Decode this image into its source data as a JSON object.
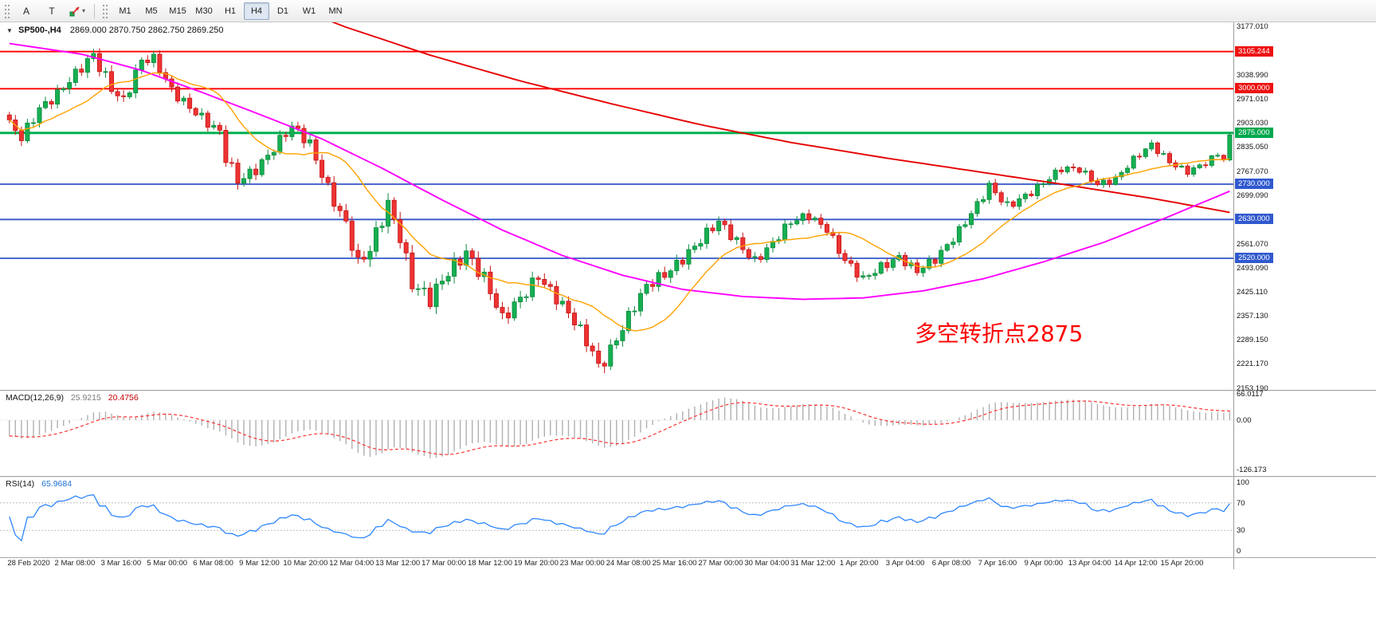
{
  "palette": {
    "up_fill": "#16af52",
    "up_stroke": "#0d8a3e",
    "down_fill": "#ee3333",
    "down_stroke": "#c41414",
    "ma_fast": "#ffa200",
    "ma_mid": "#ff00ff",
    "ma_slow": "#e60000",
    "level_red": "#ff0000",
    "level_blue": "#3256c8",
    "level_green": "#00b050",
    "badge_red": "#ee1111",
    "badge_blue": "#3059cf",
    "badge_green": "#00a84d",
    "macd_hist": "#b0b0b0",
    "macd_signal": "#ff3030",
    "rsi_line": "#2e86ff",
    "grid_dash": "#c9c9c9"
  },
  "toolbar": {
    "tool_buttons": [
      {
        "label": "A"
      },
      {
        "label": "T"
      }
    ],
    "shapes_caret": "▾",
    "timeframes": [
      "M1",
      "M5",
      "M15",
      "M30",
      "H1",
      "H4",
      "D1",
      "W1",
      "MN"
    ],
    "active_timeframe": "H4"
  },
  "chart": {
    "title_tri": "▼",
    "title_symbol": "SP500-,H4",
    "title_ohlc": "2869.000 2870.750 2862.750 2869.250",
    "annotation": {
      "text": "多空转折点2875",
      "color": "#ff0000"
    },
    "price_range": {
      "max": 3188,
      "min": 2150
    },
    "axis_ticks": [
      "3177.010",
      "3038.990",
      "2971.010",
      "2903.030",
      "2835.050",
      "2767.070",
      "2699.090",
      "2561.070",
      "2493.090",
      "2425.110",
      "2357.130",
      "2289.150",
      "2221.170",
      "2153.190"
    ],
    "levels": [
      {
        "price": 3105.244,
        "label": "3105.244",
        "type": "red"
      },
      {
        "price": 3000.0,
        "label": "3000.000",
        "type": "red"
      },
      {
        "price": 2875.0,
        "label": "2875.000",
        "type": "green"
      },
      {
        "price": 2730.0,
        "label": "2730.000",
        "type": "blue"
      },
      {
        "price": 2630.0,
        "label": "2630.000",
        "type": "blue"
      },
      {
        "price": 2520.0,
        "label": "2520.000",
        "type": "blue"
      }
    ],
    "time_labels": [
      "28 Feb 2020",
      "2 Mar 08:00",
      "3 Mar 16:00",
      "5 Mar 00:00",
      "6 Mar 08:00",
      "9 Mar 12:00",
      "10 Mar 20:00",
      "12 Mar 04:00",
      "13 Mar 12:00",
      "17 Mar 00:00",
      "18 Mar 12:00",
      "19 Mar 20:00",
      "23 Mar 00:00",
      "24 Mar 08:00",
      "25 Mar 16:00",
      "27 Mar 00:00",
      "30 Mar 04:00",
      "31 Mar 12:00",
      "1 Apr 20:00",
      "3 Apr 04:00",
      "6 Apr 08:00",
      "7 Apr 16:00",
      "9 Apr 00:00",
      "13 Apr 04:00",
      "14 Apr 12:00",
      "15 Apr 20:00"
    ]
  },
  "macd": {
    "label": "MACD(12,26,9)",
    "value_main": "25.9215",
    "value_signal": "20.4756",
    "axis_ticks": [
      {
        "v": 66.0117,
        "label": "66.0117"
      },
      {
        "v": 0,
        "label": "0.00"
      },
      {
        "v": -126.173,
        "label": "-126.173"
      }
    ],
    "scale": {
      "max": 75,
      "min": -140
    }
  },
  "rsi": {
    "label": "RSI(14)",
    "value": "65.9684",
    "axis_ticks": [
      {
        "v": 100,
        "label": "100"
      },
      {
        "v": 70,
        "label": "70"
      },
      {
        "v": 30,
        "label": "30"
      },
      {
        "v": 0,
        "label": "0"
      }
    ],
    "levels": [
      70,
      30
    ],
    "scale": {
      "max": 108,
      "min": -8
    }
  },
  "chart_data": {
    "type": "candlestick",
    "symbol": "SP500-",
    "timeframe": "H4",
    "current_ohlc": {
      "open": 2869.0,
      "high": 2870.75,
      "low": 2862.75,
      "close": 2869.25
    },
    "bars": 204,
    "time_range": {
      "start": "28 Feb 2020",
      "end": "15 Apr 20:00"
    },
    "price_path": [
      [
        0,
        2895,
        30
      ],
      [
        2,
        2862,
        30
      ],
      [
        5,
        2950,
        28
      ],
      [
        8,
        2985,
        28
      ],
      [
        11,
        3035,
        30
      ],
      [
        14,
        3095,
        32
      ],
      [
        17,
        3010,
        36
      ],
      [
        19,
        2968,
        32
      ],
      [
        22,
        3075,
        30
      ],
      [
        24,
        3080,
        26
      ],
      [
        27,
        3000,
        28
      ],
      [
        30,
        2952,
        26
      ],
      [
        33,
        2900,
        28
      ],
      [
        35,
        2872,
        26
      ],
      [
        36,
        2800,
        32
      ],
      [
        38,
        2742,
        34
      ],
      [
        41,
        2778,
        30
      ],
      [
        44,
        2830,
        30
      ],
      [
        47,
        2888,
        28
      ],
      [
        50,
        2845,
        30
      ],
      [
        53,
        2725,
        34
      ],
      [
        56,
        2615,
        38
      ],
      [
        58,
        2495,
        42
      ],
      [
        60,
        2540,
        42
      ],
      [
        63,
        2680,
        40
      ],
      [
        65,
        2590,
        42
      ],
      [
        67,
        2450,
        45
      ],
      [
        70,
        2395,
        42
      ],
      [
        73,
        2480,
        40
      ],
      [
        76,
        2545,
        38
      ],
      [
        79,
        2465,
        38
      ],
      [
        82,
        2340,
        38
      ],
      [
        85,
        2405,
        36
      ],
      [
        88,
        2478,
        34
      ],
      [
        91,
        2408,
        34
      ],
      [
        94,
        2335,
        32
      ],
      [
        97,
        2255,
        36
      ],
      [
        98,
        2215,
        46
      ],
      [
        100,
        2268,
        32
      ],
      [
        103,
        2355,
        32
      ],
      [
        106,
        2435,
        30
      ],
      [
        109,
        2475,
        32
      ],
      [
        112,
        2525,
        30
      ],
      [
        115,
        2572,
        30
      ],
      [
        118,
        2618,
        28
      ],
      [
        121,
        2568,
        28
      ],
      [
        124,
        2518,
        26
      ],
      [
        127,
        2562,
        26
      ],
      [
        130,
        2618,
        26
      ],
      [
        133,
        2642,
        24
      ],
      [
        136,
        2608,
        24
      ],
      [
        139,
        2512,
        26
      ],
      [
        142,
        2455,
        26
      ],
      [
        145,
        2498,
        24
      ],
      [
        148,
        2528,
        22
      ],
      [
        151,
        2482,
        24
      ],
      [
        154,
        2512,
        22
      ],
      [
        157,
        2578,
        24
      ],
      [
        160,
        2652,
        22
      ],
      [
        163,
        2722,
        24
      ],
      [
        166,
        2662,
        26
      ],
      [
        169,
        2698,
        22
      ],
      [
        172,
        2738,
        20
      ],
      [
        175,
        2772,
        20
      ],
      [
        178,
        2768,
        18
      ],
      [
        181,
        2732,
        20
      ],
      [
        184,
        2748,
        18
      ],
      [
        187,
        2798,
        18
      ],
      [
        190,
        2838,
        18
      ],
      [
        193,
        2795,
        18
      ],
      [
        196,
        2768,
        16
      ],
      [
        199,
        2788,
        16
      ],
      [
        201,
        2812,
        14
      ],
      [
        202,
        2798,
        12
      ],
      [
        203,
        2869.25,
        8
      ]
    ],
    "ma_mid_path": [
      [
        0,
        3128
      ],
      [
        12,
        3098
      ],
      [
        22,
        3052
      ],
      [
        32,
        2990
      ],
      [
        42,
        2925
      ],
      [
        52,
        2858
      ],
      [
        62,
        2775
      ],
      [
        72,
        2685
      ],
      [
        82,
        2600
      ],
      [
        92,
        2528
      ],
      [
        102,
        2472
      ],
      [
        112,
        2432
      ],
      [
        122,
        2412
      ],
      [
        132,
        2404
      ],
      [
        142,
        2408
      ],
      [
        152,
        2428
      ],
      [
        162,
        2462
      ],
      [
        172,
        2510
      ],
      [
        182,
        2565
      ],
      [
        192,
        2632
      ],
      [
        203,
        2710
      ]
    ],
    "ma_slow_path": [
      [
        40,
        3290
      ],
      [
        55,
        3180
      ],
      [
        70,
        3095
      ],
      [
        85,
        3022
      ],
      [
        100,
        2958
      ],
      [
        115,
        2898
      ],
      [
        130,
        2848
      ],
      [
        145,
        2806
      ],
      [
        160,
        2768
      ],
      [
        175,
        2730
      ],
      [
        190,
        2690
      ],
      [
        203,
        2650
      ]
    ],
    "ma_fast_period": 14,
    "horizontal_levels": [
      3105.244,
      3000.0,
      2875.0,
      2730.0,
      2630.0,
      2520.0
    ],
    "indicators": {
      "macd": {
        "params": [
          12,
          26,
          9
        ],
        "last_main": 25.9215,
        "last_signal": 20.4756,
        "window_max": 66.0117,
        "window_min": -126.173
      },
      "rsi": {
        "period": 14,
        "last": 65.9684,
        "levels": [
          70,
          30
        ]
      }
    }
  }
}
